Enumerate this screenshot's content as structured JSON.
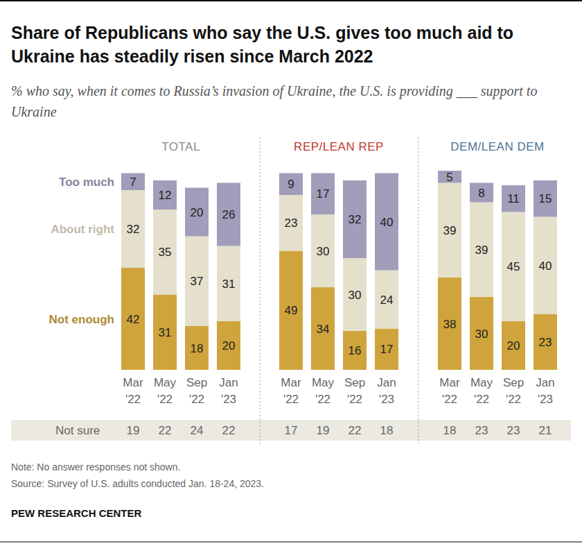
{
  "title": "Share of Republicans who say the U.S. gives too much aid to Ukraine has steadily risen since March 2022",
  "subtitle": "% who say, when it comes to Russia’s invasion of Ukraine, the U.S. is providing ___ support to Ukraine",
  "not_sure_label": "Not sure",
  "note": "Note: No answer responses not shown.",
  "source": "Source: Survey of U.S. adults conducted Jan. 18-24, 2023.",
  "credit": "PEW RESEARCH CENTER",
  "chart_data": [
    {
      "type": "bar",
      "title": "TOTAL",
      "categories": [
        "Mar '22",
        "May '22",
        "Sep '22",
        "Jan '23"
      ],
      "stacked": true,
      "data_labels": true,
      "tick_labels": false,
      "ylim": [
        0,
        82
      ],
      "legend": "left",
      "series": [
        {
          "name": "Not enough",
          "color": "#d0a43c",
          "values": [
            42,
            31,
            18,
            20
          ]
        },
        {
          "name": "About right",
          "color": "#e4e0cc",
          "values": [
            32,
            35,
            37,
            31
          ]
        },
        {
          "name": "Too much",
          "color": "#a29dba",
          "values": [
            7,
            12,
            20,
            26
          ]
        }
      ],
      "not_sure": [
        19,
        22,
        24,
        22
      ]
    },
    {
      "type": "bar",
      "title": "REP/LEAN REP",
      "categories": [
        "Mar '22",
        "May '22",
        "Sep '22",
        "Jan '23"
      ],
      "stacked": true,
      "data_labels": true,
      "tick_labels": false,
      "ylim": [
        0,
        82
      ],
      "series": [
        {
          "color": "#d0a43c",
          "values": [
            49,
            34,
            16,
            17
          ]
        },
        {
          "color": "#e4e0cc",
          "values": [
            23,
            30,
            30,
            24
          ]
        },
        {
          "color": "#a29dba",
          "values": [
            9,
            17,
            32,
            40
          ]
        }
      ],
      "not_sure": [
        17,
        19,
        22,
        18
      ]
    },
    {
      "type": "bar",
      "title": "DEM/LEAN DEM",
      "categories": [
        "Mar '22",
        "May '22",
        "Sep '22",
        "Jan '23"
      ],
      "stacked": true,
      "data_labels": true,
      "tick_labels": false,
      "ylim": [
        0,
        82
      ],
      "series": [
        {
          "color": "#d0a43c",
          "values": [
            38,
            30,
            20,
            23
          ]
        },
        {
          "color": "#e4e0cc",
          "values": [
            39,
            39,
            45,
            40
          ]
        },
        {
          "color": "#a29dba",
          "values": [
            5,
            8,
            11,
            15
          ]
        }
      ],
      "not_sure": [
        18,
        23,
        23,
        21
      ]
    }
  ]
}
